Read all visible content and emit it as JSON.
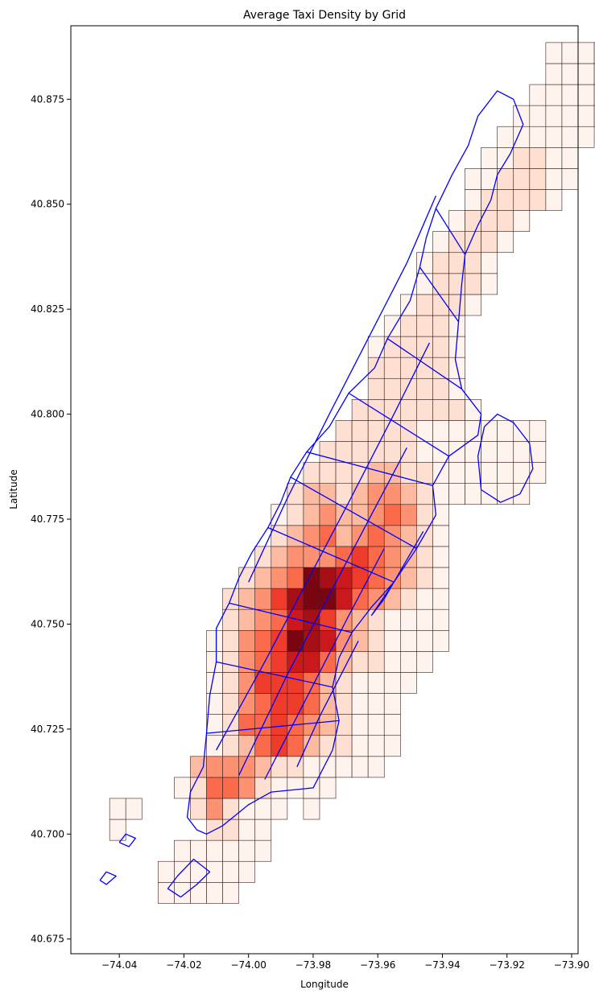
{
  "chart_data": {
    "type": "heatmap",
    "title": "Average Taxi Density by Grid",
    "xlabel": "Longitude",
    "ylabel": "Latitude",
    "xlim": [
      -74.055,
      -73.898
    ],
    "ylim": [
      40.6715,
      40.8925
    ],
    "xticks": [
      -74.04,
      -74.02,
      -74.0,
      -73.98,
      -73.96,
      -73.94,
      -73.92,
      -73.9
    ],
    "xtick_labels": [
      "−74.04",
      "−74.02",
      "−74.00",
      "−73.98",
      "−73.96",
      "−73.94",
      "−73.92",
      "−73.90"
    ],
    "yticks": [
      40.675,
      40.7,
      40.725,
      40.75,
      40.775,
      40.8,
      40.825,
      40.85,
      40.875
    ],
    "ytick_labels": [
      "40.675",
      "40.700",
      "40.725",
      "40.750",
      "40.775",
      "40.800",
      "40.825",
      "40.850",
      "40.875"
    ],
    "grid": false,
    "cell_size_deg": 0.005,
    "colormap": "Reds",
    "cell_edge_color": "#3a1f1f",
    "boundary_color": "#0000ff",
    "grid_origin": {
      "lon": -74.043,
      "lat": 40.6835
    },
    "density_levels": "0 = lightest, 8 = darkest",
    "density_rows": [
      {
        "row": 0,
        "start": 3,
        "levels": [
          0,
          0,
          0,
          0,
          0
        ]
      },
      {
        "row": 1,
        "start": 3,
        "levels": [
          0,
          0,
          0,
          0,
          0,
          0
        ]
      },
      {
        "row": 2,
        "start": 4,
        "levels": [
          0,
          0,
          0,
          0,
          0,
          0
        ]
      },
      {
        "row": 3,
        "start": 0,
        "levels": [
          0
        ]
      },
      {
        "row": 3,
        "start": 6,
        "levels": [
          1,
          1,
          0,
          0
        ]
      },
      {
        "row": 4,
        "start": 0,
        "levels": [
          0,
          0
        ]
      },
      {
        "row": 4,
        "start": 5,
        "levels": [
          1,
          3,
          1,
          0,
          0,
          0
        ]
      },
      {
        "row": 4,
        "start": 12,
        "levels": [
          0
        ]
      },
      {
        "row": 5,
        "start": 4,
        "levels": [
          0,
          1,
          4,
          4,
          3,
          1,
          0,
          0,
          0,
          0
        ]
      },
      {
        "row": 6,
        "start": 5,
        "levels": [
          2,
          3,
          3,
          3,
          2,
          1,
          1,
          0,
          0,
          0,
          0,
          0
        ]
      },
      {
        "row": 7,
        "start": 6,
        "levels": [
          0,
          1,
          2,
          4,
          5,
          4,
          2,
          1,
          1,
          0,
          0,
          0
        ]
      },
      {
        "row": 8,
        "start": 6,
        "levels": [
          0,
          1,
          4,
          4,
          5,
          4,
          3,
          2,
          1,
          0,
          0,
          0
        ]
      },
      {
        "row": 9,
        "start": 6,
        "levels": [
          0,
          1,
          3,
          4,
          5,
          5,
          4,
          2,
          1,
          0,
          0,
          0
        ]
      },
      {
        "row": 10,
        "start": 6,
        "levels": [
          0,
          1,
          3,
          5,
          5,
          5,
          4,
          2,
          1,
          0,
          0,
          0,
          0
        ]
      },
      {
        "row": 11,
        "start": 6,
        "levels": [
          0,
          1,
          3,
          4,
          5,
          6,
          6,
          4,
          2,
          1,
          1,
          0,
          0,
          0
        ]
      },
      {
        "row": 12,
        "start": 6,
        "levels": [
          0,
          1,
          3,
          4,
          5,
          8,
          7,
          6,
          3,
          2,
          1,
          0,
          0,
          0,
          0
        ]
      },
      {
        "row": 13,
        "start": 7,
        "levels": [
          1,
          2,
          3,
          4,
          6,
          7,
          5,
          3,
          2,
          1,
          0,
          0,
          0,
          0
        ]
      },
      {
        "row": 14,
        "start": 7,
        "levels": [
          1,
          2,
          3,
          5,
          7,
          8,
          8,
          6,
          4,
          3,
          2,
          1,
          0,
          0
        ]
      },
      {
        "row": 15,
        "start": 8,
        "levels": [
          1,
          2,
          3,
          4,
          8,
          7,
          6,
          5,
          4,
          3,
          2,
          1,
          0
        ]
      },
      {
        "row": 16,
        "start": 9,
        "levels": [
          1,
          2,
          3,
          3,
          3,
          4,
          5,
          4,
          3,
          2,
          1,
          0
        ]
      },
      {
        "row": 17,
        "start": 10,
        "levels": [
          1,
          2,
          3,
          4,
          2,
          3,
          4,
          3,
          2,
          1,
          0
        ]
      },
      {
        "row": 18,
        "start": 10,
        "levels": [
          0,
          1,
          2,
          3,
          2,
          2,
          3,
          4,
          3,
          1,
          0
        ]
      },
      {
        "row": 19,
        "start": 11,
        "levels": [
          1,
          2,
          2,
          1,
          2,
          3,
          3,
          2,
          1,
          0,
          0,
          0,
          0,
          0,
          0
        ]
      },
      {
        "row": 20,
        "start": 12,
        "levels": [
          1,
          1,
          1,
          1,
          2,
          2,
          1,
          1,
          0,
          0,
          0,
          0,
          0,
          0,
          0
        ]
      },
      {
        "row": 21,
        "start": 13,
        "levels": [
          1,
          1,
          1,
          1,
          1,
          1,
          0,
          0,
          0,
          0,
          0,
          0,
          0,
          0
        ]
      },
      {
        "row": 22,
        "start": 14,
        "levels": [
          1,
          1,
          1,
          1,
          1,
          0,
          0,
          0,
          0,
          0,
          0,
          0,
          0
        ]
      },
      {
        "row": 23,
        "start": 15,
        "levels": [
          1,
          1,
          1,
          1,
          1,
          1,
          1,
          0
        ]
      },
      {
        "row": 24,
        "start": 16,
        "levels": [
          1,
          1,
          1,
          1,
          1,
          0
        ]
      },
      {
        "row": 25,
        "start": 16,
        "levels": [
          1,
          1,
          1,
          1,
          1,
          0
        ]
      },
      {
        "row": 26,
        "start": 16,
        "levels": [
          0,
          1,
          1,
          1,
          1,
          0
        ]
      },
      {
        "row": 27,
        "start": 17,
        "levels": [
          0,
          1,
          1,
          1,
          0
        ]
      },
      {
        "row": 28,
        "start": 18,
        "levels": [
          0,
          1,
          1,
          1,
          0
        ]
      },
      {
        "row": 29,
        "start": 19,
        "levels": [
          0,
          1,
          1,
          1,
          0
        ]
      },
      {
        "row": 30,
        "start": 19,
        "levels": [
          0,
          1,
          1,
          1,
          0
        ]
      },
      {
        "row": 31,
        "start": 20,
        "levels": [
          0,
          1,
          1,
          1,
          0
        ]
      },
      {
        "row": 32,
        "start": 21,
        "levels": [
          0,
          1,
          1,
          1,
          0
        ]
      },
      {
        "row": 33,
        "start": 22,
        "levels": [
          0,
          1,
          1,
          1,
          1,
          0
        ]
      },
      {
        "row": 34,
        "start": 22,
        "levels": [
          0,
          0,
          1,
          1,
          1,
          0,
          0
        ]
      },
      {
        "row": 35,
        "start": 23,
        "levels": [
          0,
          0,
          1,
          1,
          0,
          0
        ]
      },
      {
        "row": 36,
        "start": 24,
        "levels": [
          0,
          0,
          0,
          0,
          0,
          0
        ]
      },
      {
        "row": 37,
        "start": 25,
        "levels": [
          0,
          0,
          0,
          0,
          0,
          0,
          0
        ]
      },
      {
        "row": 38,
        "start": 26,
        "levels": [
          0,
          0,
          0,
          0,
          0,
          0,
          0
        ]
      },
      {
        "row": 39,
        "start": 27,
        "levels": [
          0,
          0,
          0,
          0,
          0
        ]
      },
      {
        "row": 39,
        "start": 33,
        "levels": [
          0,
          0
        ]
      },
      {
        "row": 40,
        "start": 27,
        "levels": [
          0,
          0,
          0,
          0,
          0
        ]
      },
      {
        "row": 40,
        "start": 33,
        "levels": [
          0,
          0
        ]
      }
    ],
    "level_colors": [
      "#fff3ee",
      "#fee0d2",
      "#fcbba1",
      "#fc9272",
      "#fb6a4a",
      "#ef3b2c",
      "#cb181d",
      "#a50f15",
      "#7a0510"
    ]
  }
}
